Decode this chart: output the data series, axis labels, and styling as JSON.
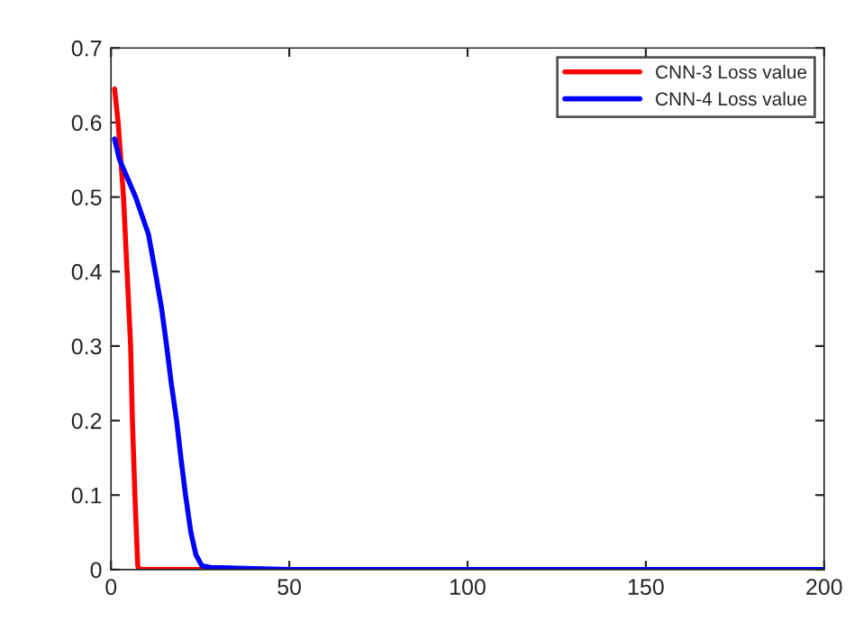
{
  "chart_data": {
    "type": "line",
    "xlim": [
      0,
      200
    ],
    "ylim": [
      0,
      0.7
    ],
    "xticks": [
      0,
      50,
      100,
      150,
      200
    ],
    "yticks": [
      0,
      0.1,
      0.2,
      0.3,
      0.4,
      0.5,
      0.6,
      0.7
    ],
    "grid": false,
    "legend": "top right",
    "line_style": "solid",
    "marker": "none",
    "series": [
      {
        "name": "CNN-3 Loss value",
        "color": "#ff0000",
        "x": [
          1,
          2,
          3.5,
          4.5,
          5.5,
          6,
          6.7,
          7.5,
          8,
          20,
          30
        ],
        "values": [
          0.645,
          0.6,
          0.5,
          0.4,
          0.3,
          0.2,
          0.1,
          0.005,
          0,
          0,
          0
        ]
      },
      {
        "name": "CNN-4 Loss value",
        "color": "#0000ff",
        "x": [
          1,
          2.4,
          6.9,
          10.5,
          12.4,
          14.2,
          15.6,
          16.9,
          18.4,
          19.6,
          20.9,
          22.4,
          23.8,
          25.5,
          28,
          35,
          50,
          100,
          150,
          200
        ],
        "values": [
          0.578,
          0.55,
          0.5,
          0.45,
          0.4,
          0.35,
          0.3,
          0.25,
          0.2,
          0.15,
          0.1,
          0.05,
          0.02,
          0.005,
          0.003,
          0.002,
          0,
          0,
          0,
          0
        ]
      }
    ]
  }
}
